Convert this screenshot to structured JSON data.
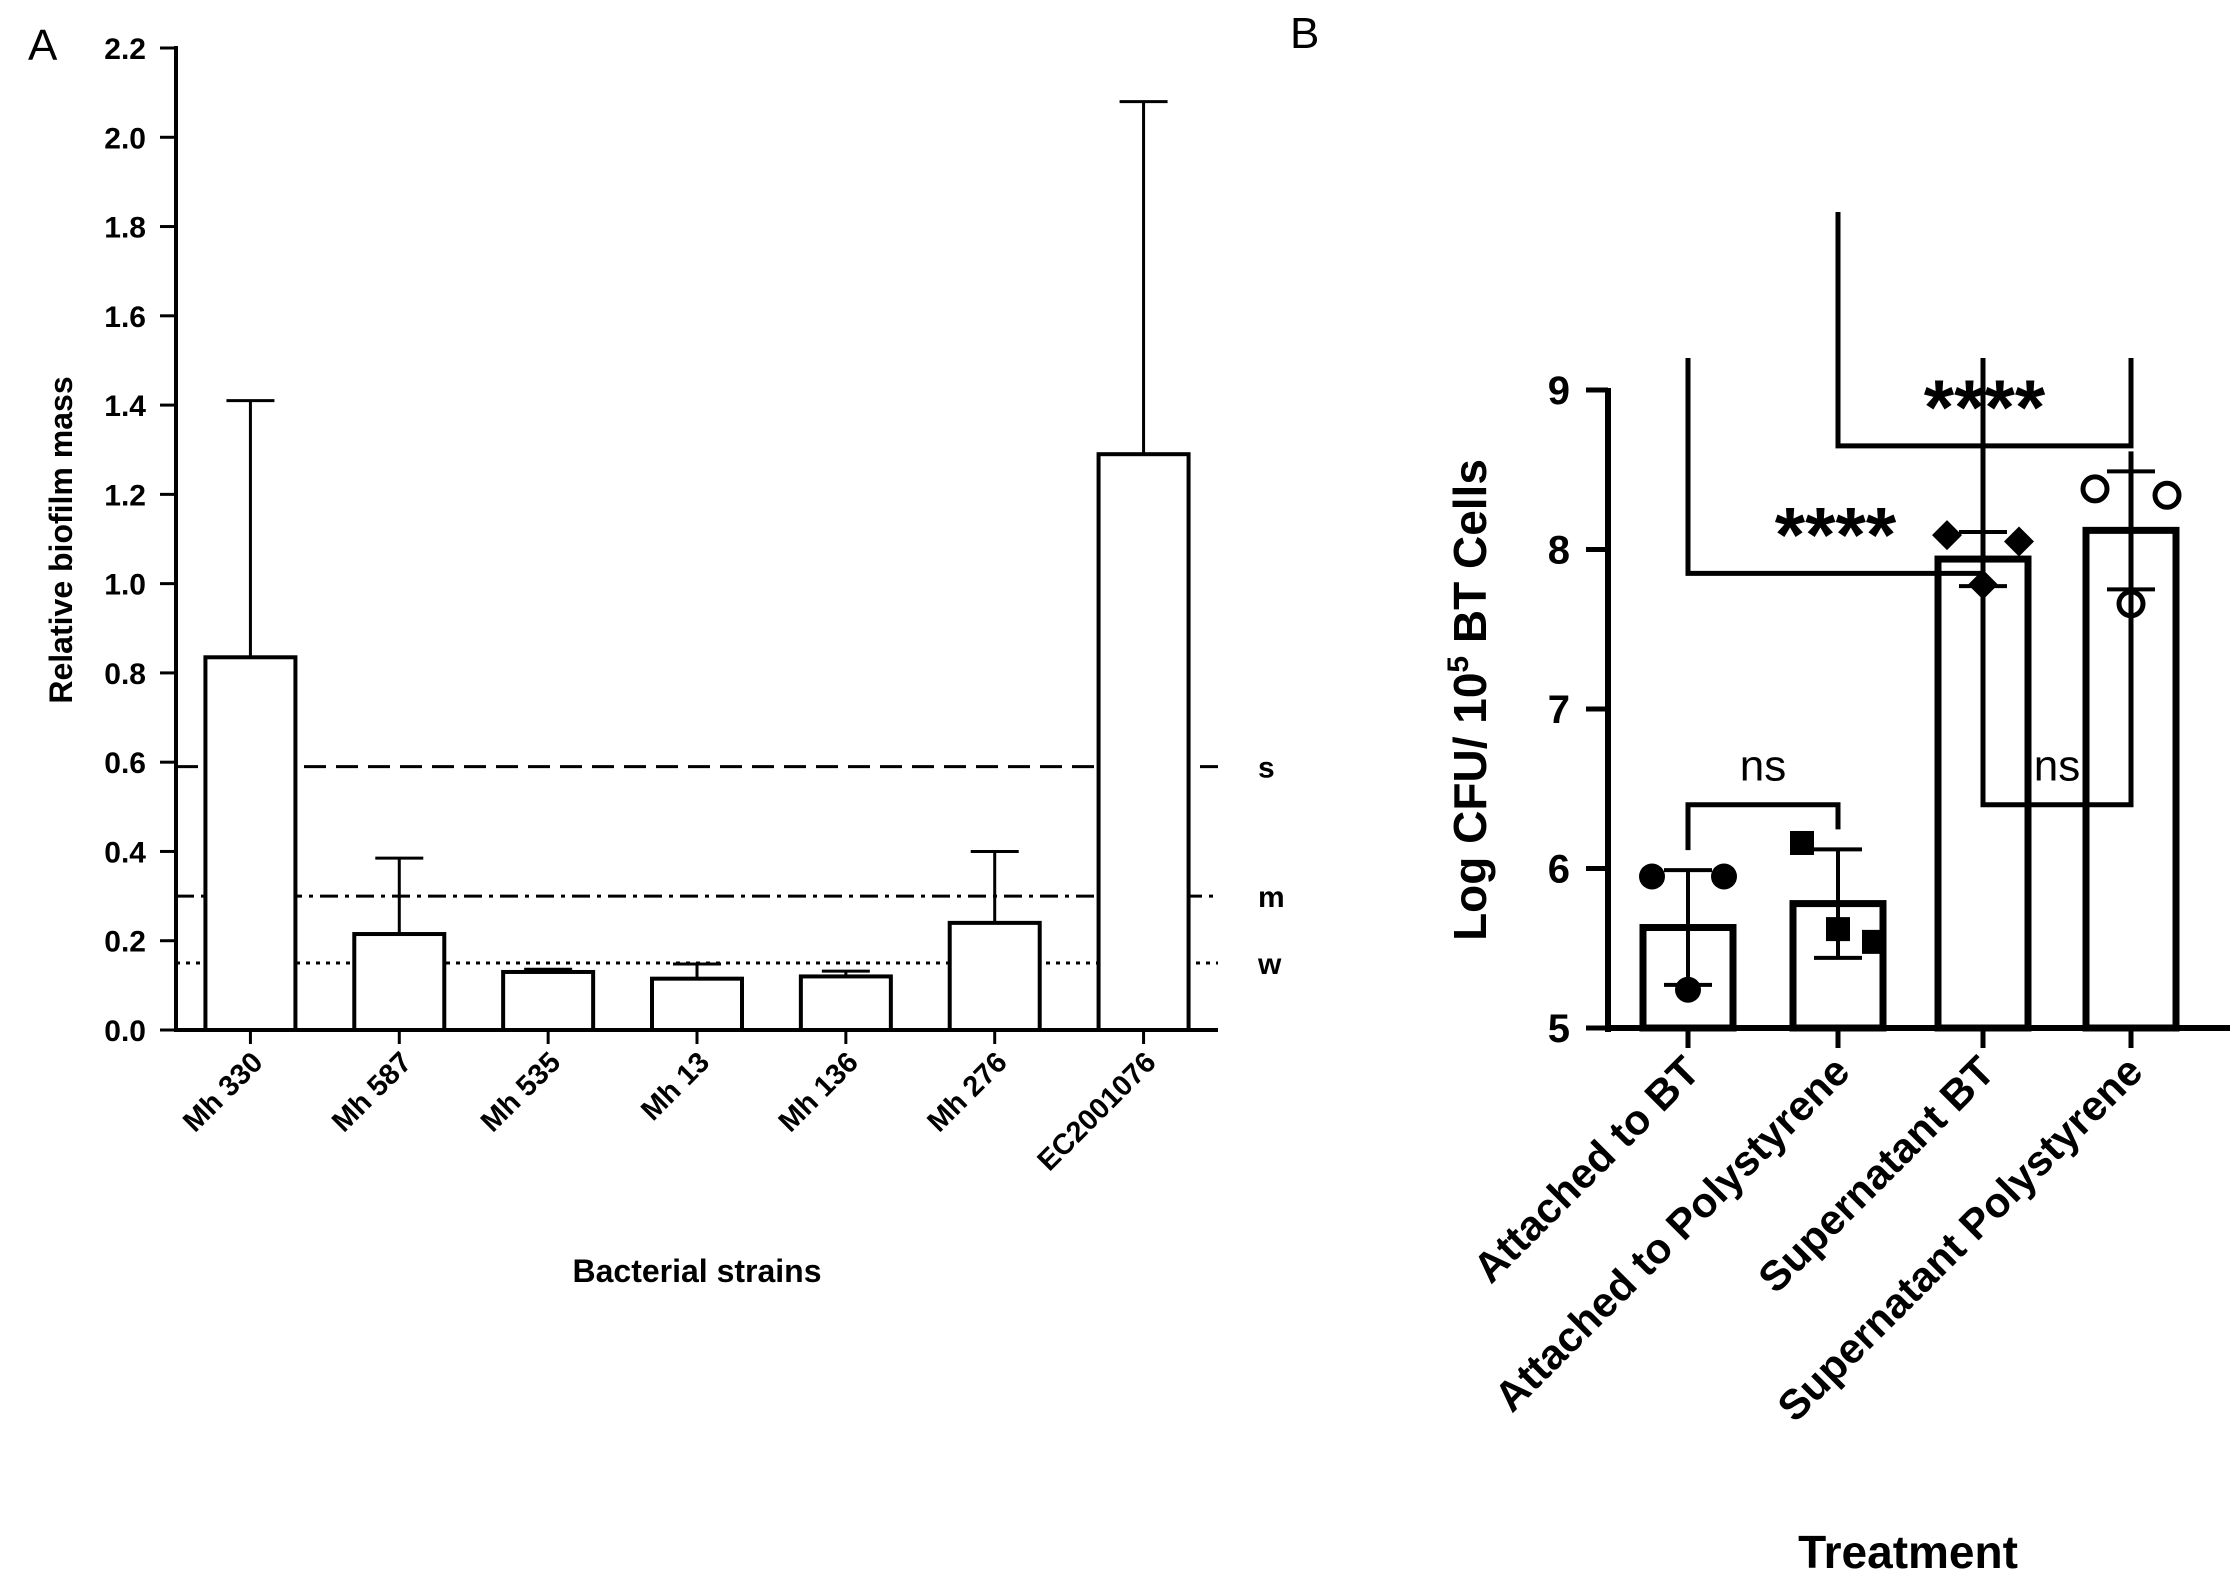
{
  "chart_data": [
    {
      "panel": "A",
      "type": "bar",
      "xlabel": "Bacterial strains",
      "ylabel": "Relative biofilm mass",
      "ylim": [
        0,
        2.2
      ],
      "yticks": [
        "0.0",
        "0.2",
        "0.4",
        "0.6",
        "0.8",
        "1.0",
        "1.2",
        "1.4",
        "1.6",
        "1.8",
        "2.0",
        "2.2"
      ],
      "categories": [
        "Mh 330",
        "Mh 587",
        "Mh 535",
        "Mh 13",
        "Mh 136",
        "Mh 276",
        "EC2001076"
      ],
      "values": [
        0.835,
        0.215,
        0.13,
        0.115,
        0.12,
        0.24,
        1.29
      ],
      "errors": [
        0.575,
        0.17,
        0.006,
        0.033,
        0.012,
        0.16,
        0.79
      ],
      "thresholds": [
        {
          "label": "s",
          "value": 0.59,
          "style": "dashed"
        },
        {
          "label": "m",
          "value": 0.3,
          "style": "dashdot"
        },
        {
          "label": "w",
          "value": 0.15,
          "style": "dotted"
        }
      ]
    },
    {
      "panel": "B",
      "type": "bar",
      "xlabel": "Treatment",
      "ylabel_parts": [
        "Log CFU/ 10",
        "5",
        " BT Cells"
      ],
      "ylim": [
        5,
        9
      ],
      "yticks": [
        "5",
        "6",
        "7",
        "8",
        "9"
      ],
      "categories": [
        "Attached to BT",
        "Attached to Polystyrene",
        "Supernatant BT",
        "Supernatant Polystyrene"
      ],
      "values": [
        5.63,
        5.78,
        7.94,
        8.12
      ],
      "errors": [
        0.36,
        0.34,
        0.17,
        0.37
      ],
      "points": [
        [
          5.95,
          5.95,
          5.24
        ],
        [
          6.16,
          5.54,
          5.62
        ],
        [
          8.09,
          8.05,
          7.78
        ],
        [
          8.38,
          8.34,
          7.66
        ]
      ],
      "markers": [
        "circle-filled",
        "square-filled",
        "diamond-filled",
        "circle-open"
      ],
      "comparisons": [
        {
          "from": 2,
          "to": 4,
          "label": "****",
          "y": 8.65
        },
        {
          "from": 1,
          "to": 3,
          "label": "****",
          "y": 7.85
        },
        {
          "from": 1,
          "to": 2,
          "label": "ns",
          "y": 6.4
        },
        {
          "from": 3,
          "to": 4,
          "label": "ns",
          "y": 6.4
        }
      ]
    }
  ]
}
